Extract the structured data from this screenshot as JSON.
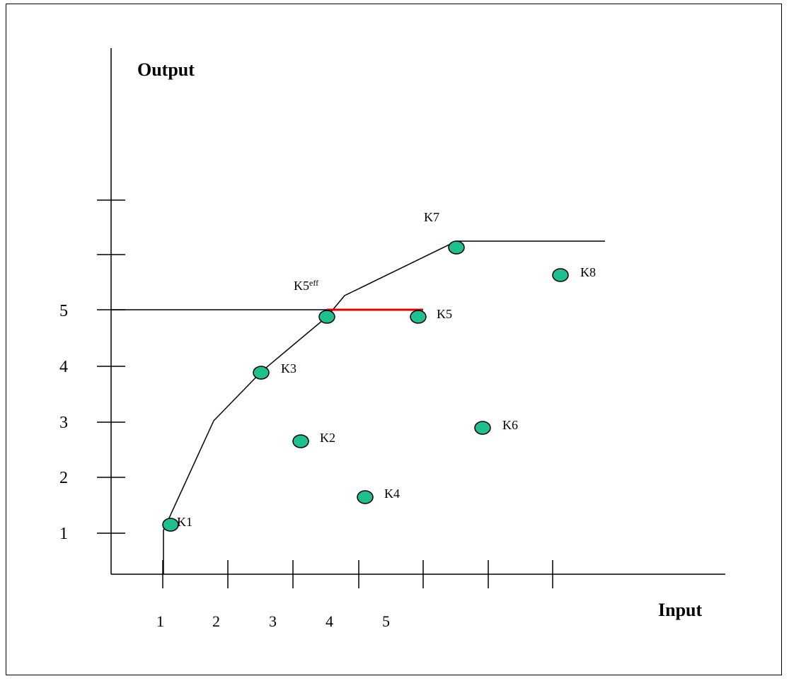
{
  "diagram": {
    "y_axis_title": "Output",
    "x_axis_title": "Input",
    "y_tick_labels": [
      "1",
      "2",
      "3",
      "4",
      "5"
    ],
    "x_tick_labels": [
      "1",
      "2",
      "3",
      "4",
      "5"
    ],
    "points": [
      {
        "id": "K1",
        "label": "K1"
      },
      {
        "id": "K2",
        "label": "K2"
      },
      {
        "id": "K3",
        "label": "K3"
      },
      {
        "id": "K4",
        "label": "K4"
      },
      {
        "id": "K5",
        "label": "K5"
      },
      {
        "id": "K6",
        "label": "K6"
      },
      {
        "id": "K7",
        "label": "K7"
      },
      {
        "id": "K8",
        "label": "K8"
      }
    ],
    "efficient_projection": {
      "label": "K5",
      "superscript": "eff"
    },
    "colors": {
      "point_fill": "#1fc08f",
      "point_stroke": "#000000",
      "efficiency_gap": "#e00000",
      "line": "#000000"
    }
  }
}
